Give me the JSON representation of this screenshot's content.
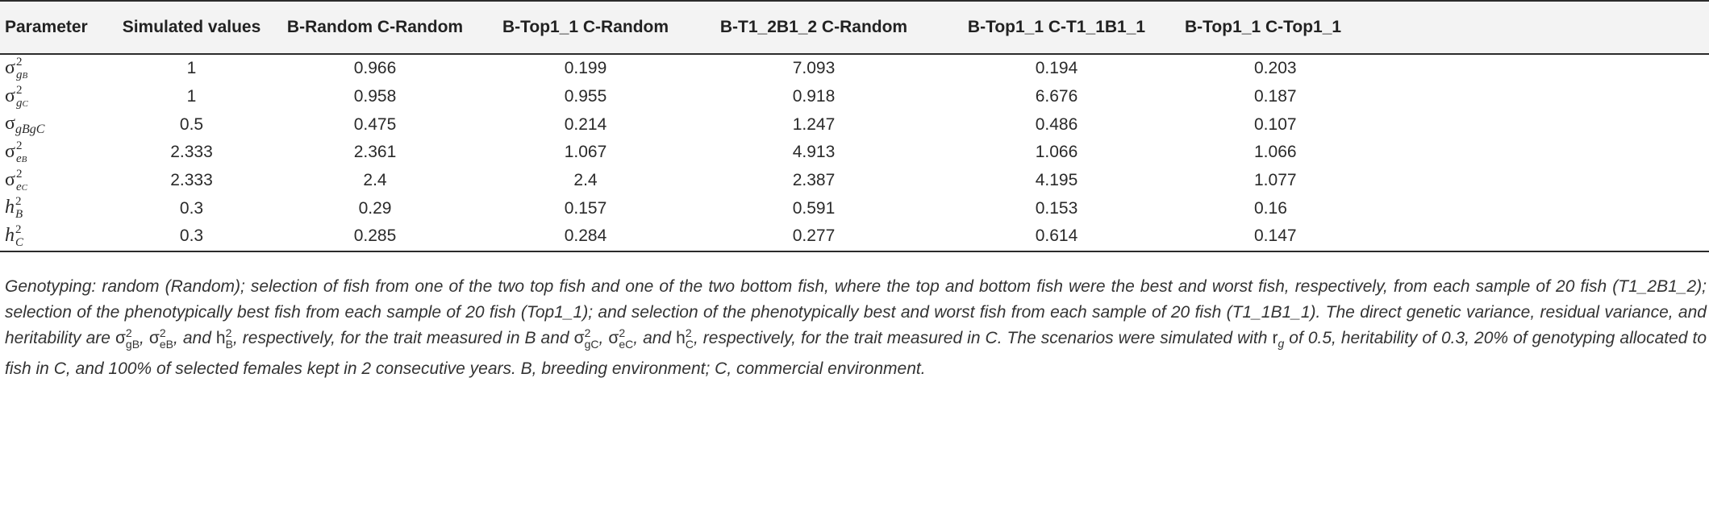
{
  "table": {
    "headers": [
      "Parameter",
      "Simulated values",
      "B-Random C-Random",
      "B-Top1_1 C-Random",
      "B-T1_2B1_2 C-Random",
      "B-Top1_1 C-T1_1B1_1",
      "B-Top1_1 C-Top1_1"
    ],
    "rows": [
      {
        "param": {
          "sym": "σ",
          "sup": "2",
          "sub": "g",
          "subsub": "B"
        },
        "values": [
          "1",
          "0.966",
          "0.199",
          "7.093",
          "0.194",
          "0.203"
        ]
      },
      {
        "param": {
          "sym": "σ",
          "sup": "2",
          "sub": "g",
          "subsub": "C"
        },
        "values": [
          "1",
          "0.958",
          "0.955",
          "0.918",
          "6.676",
          "0.187"
        ]
      },
      {
        "param": {
          "sym": "σ",
          "sup": "",
          "sub": "gBgC",
          "subsub": ""
        },
        "values": [
          "0.5",
          "0.475",
          "0.214",
          "1.247",
          "0.486",
          "0.107"
        ]
      },
      {
        "param": {
          "sym": "σ",
          "sup": "2",
          "sub": "e",
          "subsub": "B"
        },
        "values": [
          "2.333",
          "2.361",
          "1.067",
          "4.913",
          "1.066",
          "1.066"
        ]
      },
      {
        "param": {
          "sym": "σ",
          "sup": "2",
          "sub": "e",
          "subsub": "C"
        },
        "values": [
          "2.333",
          "2.4",
          "2.4",
          "2.387",
          "4.195",
          "1.077"
        ]
      },
      {
        "param": {
          "sym": "h",
          "sup": "2",
          "sub": "B",
          "subsub": ""
        },
        "values": [
          "0.3",
          "0.29",
          "0.157",
          "0.591",
          "0.153",
          "0.16"
        ]
      },
      {
        "param": {
          "sym": "h",
          "sup": "2",
          "sub": "C",
          "subsub": ""
        },
        "values": [
          "0.3",
          "0.285",
          "0.284",
          "0.277",
          "0.614",
          "0.147"
        ]
      }
    ]
  },
  "caption": {
    "line1": "Genotyping: random (Random); selection of fish from one of the two top fish and one of the two bottom fish, where the top and bottom fish were the best and worst fish,",
    "line2": "respectively, from each sample of 20 fish (T1_2B1_2); selection of the phenotypically best fish from each sample of 20 fish (Top1_1); and selection of the phenotypically",
    "line3_pre": "best and worst fish from each sample of 20 fish (T1_1B1_1). The direct genetic variance, residual variance, and heritability are ",
    "line3_post": ", respectively, for the trait",
    "line4_pre": "measured in B and ",
    "line4_post": ", respectively, for the trait measured in C. The scenarios were simulated with ",
    "line4_end": " of 0.5, heritability of 0.3, 20% of genotyping allocated",
    "line5": "to fish in C, and 100% of selected females kept in 2 consecutive years. B, breeding environment; C, commercial environment.",
    "sym_sigma": "σ",
    "sym_h": "h",
    "sym_r": "r",
    "sup2": "2",
    "sub_gB": "gB",
    "sub_eB": "eB",
    "sub_B": "B",
    "sub_gC": "gC",
    "sub_eC": "eC",
    "sub_C": "C",
    "sub_g": "g",
    "comma": ", ",
    "and": ", and "
  }
}
